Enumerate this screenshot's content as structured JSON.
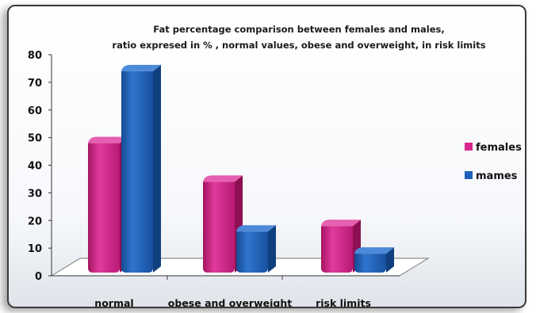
{
  "chart_data": {
    "type": "bar",
    "title_lines": [
      "Fat percentage comparison between females and males,",
      "ratio expresed in % , normal values, obese and overweight, in risk limits"
    ],
    "categories": [
      "normal",
      "obese and overweight",
      "risk limits"
    ],
    "series": [
      {
        "name": "females",
        "values": [
          48,
          34,
          18
        ]
      },
      {
        "name": "mames",
        "values": [
          74,
          16,
          8
        ]
      }
    ],
    "ylim": [
      0,
      80
    ],
    "yticks": [
      "0",
      "10",
      "20",
      "30",
      "40",
      "50",
      "60",
      "70",
      "80"
    ],
    "legend_position": "right",
    "grid": false,
    "colors": {
      "females": "#d6278f",
      "mames": "#1f5fb8"
    }
  }
}
